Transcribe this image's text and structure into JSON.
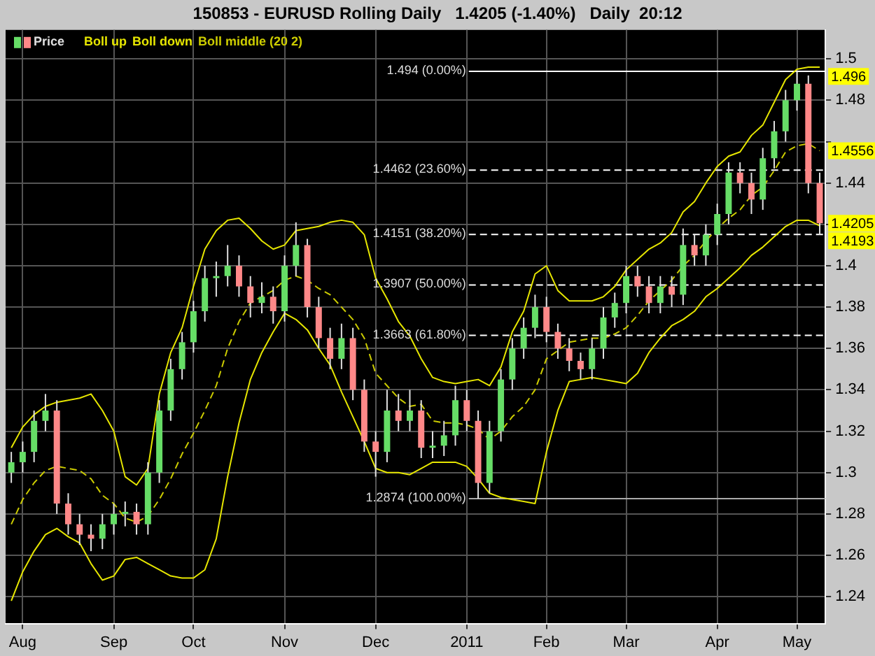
{
  "chart_data": {
    "type": "candlestick",
    "title": "150853 - EURUSD Rolling Daily   1.4205 (-1.40%)   Daily  20:12",
    "categories": [
      null,
      "Aug",
      null,
      null,
      null,
      null,
      null,
      null,
      null,
      "Sep",
      null,
      null,
      null,
      null,
      null,
      null,
      "Oct",
      null,
      null,
      null,
      null,
      null,
      null,
      null,
      "Nov",
      null,
      null,
      null,
      null,
      null,
      null,
      null,
      "Dec",
      null,
      null,
      null,
      null,
      null,
      null,
      null,
      "2011",
      null,
      null,
      null,
      null,
      null,
      null,
      "Feb",
      null,
      null,
      null,
      null,
      null,
      null,
      "Mar",
      null,
      null,
      null,
      null,
      null,
      null,
      null,
      "Apr",
      null,
      null,
      null,
      null,
      null,
      null,
      "May",
      null,
      null
    ],
    "series": [
      {
        "name": "Price",
        "color": "#e0e0e0",
        "value_labels": [
          null,
          null,
          null,
          null,
          null,
          null,
          null,
          null,
          null,
          null,
          null,
          null,
          null,
          null,
          null,
          null,
          null,
          null,
          null,
          null,
          null,
          null,
          null,
          null,
          null,
          null,
          null,
          null,
          null,
          null,
          null,
          null,
          null,
          null,
          null,
          null,
          null,
          null,
          null,
          null,
          null,
          null,
          null,
          null,
          null,
          null,
          null,
          null,
          null,
          null,
          null,
          null,
          null,
          null,
          null,
          null,
          null,
          null,
          null,
          null,
          null,
          null,
          null,
          null,
          null,
          null,
          null,
          null,
          null,
          null,
          null,
          "1.4205"
        ],
        "colors": [
          "#66dd66",
          "#66dd66",
          "#66dd66",
          "#66dd66",
          "#ff8888",
          "#ff8888",
          "#ff8888",
          "#ff8888",
          "#66dd66",
          "#66dd66",
          "#66dd66",
          "#ff8888",
          "#66dd66",
          "#66dd66",
          "#66dd66",
          "#66dd66",
          "#66dd66",
          "#66dd66",
          "#66dd66",
          "#66dd66",
          "#ff8888",
          "#ff8888",
          "#66dd66",
          "#ff8888",
          "#66dd66",
          "#66dd66",
          "#ff8888",
          "#ff8888",
          "#ff8888",
          "#66dd66",
          "#ff8888",
          "#ff8888",
          "#ff8888",
          "#66dd66",
          "#ff8888",
          "#66dd66",
          "#ff8888",
          "#66dd66",
          "#66dd66",
          "#66dd66",
          "#ff8888",
          "#ff8888",
          "#66dd66",
          "#66dd66",
          "#66dd66",
          "#66dd66",
          "#66dd66",
          "#ff8888",
          "#ff8888",
          "#ff8888",
          "#ff8888",
          "#66dd66",
          "#66dd66",
          "#66dd66",
          "#66dd66",
          "#ff8888",
          "#ff8888",
          "#66dd66",
          "#ff8888",
          "#66dd66",
          "#ff8888",
          "#66dd66",
          "#66dd66",
          "#66dd66",
          "#ff8888",
          "#ff8888",
          "#66dd66",
          "#66dd66",
          "#66dd66",
          "#66dd66",
          "#ff8888",
          "#ff8888"
        ],
        "ohlc": [
          [
            1.3,
            1.31,
            1.295,
            1.305
          ],
          [
            1.305,
            1.315,
            1.3,
            1.31
          ],
          [
            1.31,
            1.33,
            1.305,
            1.325
          ],
          [
            1.325,
            1.338,
            1.32,
            1.33
          ],
          [
            1.33,
            1.335,
            1.28,
            1.285
          ],
          [
            1.285,
            1.29,
            1.27,
            1.275
          ],
          [
            1.275,
            1.28,
            1.265,
            1.27
          ],
          [
            1.27,
            1.275,
            1.262,
            1.268
          ],
          [
            1.268,
            1.28,
            1.263,
            1.275
          ],
          [
            1.275,
            1.285,
            1.27,
            1.28
          ],
          [
            1.28,
            1.286,
            1.274,
            1.281
          ],
          [
            1.281,
            1.285,
            1.27,
            1.275
          ],
          [
            1.275,
            1.305,
            1.27,
            1.3
          ],
          [
            1.3,
            1.335,
            1.295,
            1.33
          ],
          [
            1.33,
            1.355,
            1.325,
            1.35
          ],
          [
            1.35,
            1.368,
            1.345,
            1.363
          ],
          [
            1.363,
            1.383,
            1.358,
            1.378
          ],
          [
            1.378,
            1.4,
            1.373,
            1.394
          ],
          [
            1.394,
            1.402,
            1.385,
            1.395
          ],
          [
            1.395,
            1.41,
            1.39,
            1.4
          ],
          [
            1.4,
            1.405,
            1.385,
            1.39
          ],
          [
            1.39,
            1.395,
            1.375,
            1.382
          ],
          [
            1.382,
            1.392,
            1.377,
            1.385
          ],
          [
            1.385,
            1.39,
            1.372,
            1.378
          ],
          [
            1.378,
            1.405,
            1.373,
            1.4
          ],
          [
            1.4,
            1.421,
            1.395,
            1.41
          ],
          [
            1.41,
            1.413,
            1.375,
            1.38
          ],
          [
            1.38,
            1.385,
            1.36,
            1.365
          ],
          [
            1.365,
            1.37,
            1.35,
            1.355
          ],
          [
            1.355,
            1.372,
            1.35,
            1.365
          ],
          [
            1.365,
            1.37,
            1.335,
            1.34
          ],
          [
            1.34,
            1.345,
            1.31,
            1.315
          ],
          [
            1.315,
            1.32,
            1.298,
            1.31
          ],
          [
            1.31,
            1.34,
            1.305,
            1.33
          ],
          [
            1.33,
            1.338,
            1.32,
            1.325
          ],
          [
            1.325,
            1.34,
            1.32,
            1.33
          ],
          [
            1.33,
            1.335,
            1.307,
            1.312
          ],
          [
            1.312,
            1.32,
            1.307,
            1.313
          ],
          [
            1.313,
            1.325,
            1.308,
            1.318
          ],
          [
            1.318,
            1.342,
            1.313,
            1.335
          ],
          [
            1.335,
            1.34,
            1.32,
            1.325
          ],
          [
            1.325,
            1.33,
            1.2874,
            1.295
          ],
          [
            1.295,
            1.325,
            1.29,
            1.32
          ],
          [
            1.32,
            1.35,
            1.315,
            1.345
          ],
          [
            1.345,
            1.365,
            1.34,
            1.36
          ],
          [
            1.36,
            1.375,
            1.355,
            1.37
          ],
          [
            1.37,
            1.386,
            1.365,
            1.38
          ],
          [
            1.38,
            1.385,
            1.363,
            1.368
          ],
          [
            1.368,
            1.372,
            1.355,
            1.36
          ],
          [
            1.36,
            1.365,
            1.349,
            1.354
          ],
          [
            1.354,
            1.358,
            1.345,
            1.35
          ],
          [
            1.35,
            1.365,
            1.345,
            1.36
          ],
          [
            1.36,
            1.38,
            1.355,
            1.375
          ],
          [
            1.375,
            1.387,
            1.37,
            1.382
          ],
          [
            1.382,
            1.4,
            1.377,
            1.395
          ],
          [
            1.395,
            1.4,
            1.385,
            1.39
          ],
          [
            1.39,
            1.395,
            1.377,
            1.382
          ],
          [
            1.382,
            1.395,
            1.377,
            1.39
          ],
          [
            1.39,
            1.395,
            1.38,
            1.386
          ],
          [
            1.386,
            1.418,
            1.381,
            1.41
          ],
          [
            1.41,
            1.415,
            1.4,
            1.405
          ],
          [
            1.405,
            1.42,
            1.4,
            1.415
          ],
          [
            1.415,
            1.43,
            1.41,
            1.425
          ],
          [
            1.425,
            1.45,
            1.42,
            1.445
          ],
          [
            1.445,
            1.45,
            1.435,
            1.44
          ],
          [
            1.44,
            1.445,
            1.425,
            1.432
          ],
          [
            1.432,
            1.457,
            1.427,
            1.452
          ],
          [
            1.452,
            1.47,
            1.447,
            1.465
          ],
          [
            1.465,
            1.485,
            1.46,
            1.48
          ],
          [
            1.48,
            1.494,
            1.475,
            1.488
          ],
          [
            1.488,
            1.492,
            1.435,
            1.44
          ],
          [
            1.44,
            1.445,
            1.415,
            1.4205
          ]
        ]
      },
      {
        "name": "Boll up",
        "type": "line",
        "color": "#e6e600",
        "line_style": "solid",
        "value_labels": [
          null,
          null,
          null,
          null,
          null,
          null,
          null,
          null,
          null,
          null,
          null,
          null,
          null,
          null,
          null,
          null,
          null,
          null,
          null,
          null,
          null,
          null,
          null,
          null,
          null,
          null,
          null,
          null,
          null,
          null,
          null,
          null,
          null,
          null,
          null,
          null,
          null,
          null,
          null,
          null,
          null,
          null,
          null,
          null,
          null,
          null,
          null,
          null,
          null,
          null,
          null,
          null,
          null,
          null,
          null,
          null,
          null,
          null,
          null,
          null,
          null,
          null,
          null,
          null,
          null,
          null,
          null,
          null,
          null,
          null,
          null,
          "1.496"
        ],
        "values": [
          1.312,
          1.322,
          1.328,
          1.332,
          1.334,
          1.335,
          1.336,
          1.338,
          1.33,
          1.32,
          1.298,
          1.294,
          1.302,
          1.338,
          1.358,
          1.37,
          1.39,
          1.408,
          1.417,
          1.422,
          1.423,
          1.418,
          1.412,
          1.408,
          1.41,
          1.417,
          1.418,
          1.419,
          1.421,
          1.422,
          1.421,
          1.415,
          1.394,
          1.384,
          1.373,
          1.366,
          1.355,
          1.346,
          1.344,
          1.343,
          1.344,
          1.345,
          1.342,
          1.351,
          1.368,
          1.378,
          1.396,
          1.4,
          1.388,
          1.383,
          1.383,
          1.383,
          1.385,
          1.39,
          1.398,
          1.403,
          1.408,
          1.411,
          1.416,
          1.426,
          1.431,
          1.44,
          1.448,
          1.453,
          1.455,
          1.463,
          1.468,
          1.479,
          1.49,
          1.495,
          1.496,
          1.496
        ]
      },
      {
        "name": "Boll down",
        "type": "line",
        "color": "#e6e600",
        "line_style": "solid",
        "value_labels": [
          null,
          null,
          null,
          null,
          null,
          null,
          null,
          null,
          null,
          null,
          null,
          null,
          null,
          null,
          null,
          null,
          null,
          null,
          null,
          null,
          null,
          null,
          null,
          null,
          null,
          null,
          null,
          null,
          null,
          null,
          null,
          null,
          null,
          null,
          null,
          null,
          null,
          null,
          null,
          null,
          null,
          null,
          null,
          null,
          null,
          null,
          null,
          null,
          null,
          null,
          null,
          null,
          null,
          null,
          null,
          null,
          null,
          null,
          null,
          null,
          null,
          null,
          null,
          null,
          null,
          null,
          null,
          null,
          null,
          null,
          null,
          "1.4193"
        ],
        "values": [
          1.238,
          1.252,
          1.262,
          1.27,
          1.273,
          1.269,
          1.266,
          1.256,
          1.248,
          1.25,
          1.258,
          1.259,
          1.256,
          1.253,
          1.25,
          1.249,
          1.249,
          1.253,
          1.268,
          1.298,
          1.324,
          1.345,
          1.358,
          1.368,
          1.377,
          1.374,
          1.369,
          1.36,
          1.352,
          1.339,
          1.327,
          1.315,
          1.302,
          1.3,
          1.3,
          1.299,
          1.302,
          1.305,
          1.305,
          1.305,
          1.303,
          1.297,
          1.29,
          1.288,
          1.287,
          1.286,
          1.285,
          1.31,
          1.33,
          1.344,
          1.345,
          1.346,
          1.345,
          1.344,
          1.343,
          1.348,
          1.358,
          1.365,
          1.371,
          1.374,
          1.378,
          1.385,
          1.389,
          1.394,
          1.399,
          1.405,
          1.409,
          1.414,
          1.419,
          1.422,
          1.422,
          1.4193
        ]
      },
      {
        "name": "Boll middle (20 2)",
        "type": "line",
        "color": "#cccc00",
        "line_style": "dashed",
        "value_labels": [
          null,
          null,
          null,
          null,
          null,
          null,
          null,
          null,
          null,
          null,
          null,
          null,
          null,
          null,
          null,
          null,
          null,
          null,
          null,
          null,
          null,
          null,
          null,
          null,
          null,
          null,
          null,
          null,
          null,
          null,
          null,
          null,
          null,
          null,
          null,
          null,
          null,
          null,
          null,
          null,
          null,
          null,
          null,
          null,
          null,
          null,
          null,
          null,
          null,
          null,
          null,
          null,
          null,
          null,
          null,
          null,
          null,
          null,
          null,
          null,
          null,
          null,
          null,
          null,
          null,
          null,
          null,
          null,
          null,
          null,
          null,
          "1.4556"
        ],
        "values": [
          1.275,
          1.287,
          1.295,
          1.301,
          1.303,
          1.302,
          1.301,
          1.297,
          1.289,
          1.285,
          1.278,
          1.276,
          1.279,
          1.287,
          1.297,
          1.309,
          1.319,
          1.33,
          1.342,
          1.36,
          1.373,
          1.382,
          1.385,
          1.388,
          1.393,
          1.395,
          1.393,
          1.389,
          1.386,
          1.38,
          1.374,
          1.365,
          1.348,
          1.342,
          1.336,
          1.332,
          1.333,
          1.325,
          1.324,
          1.324,
          1.323,
          1.321,
          1.316,
          1.32,
          1.327,
          1.332,
          1.34,
          1.355,
          1.359,
          1.363,
          1.364,
          1.365,
          1.365,
          1.367,
          1.37,
          1.376,
          1.383,
          1.388,
          1.393,
          1.4,
          1.405,
          1.412,
          1.418,
          1.423,
          1.427,
          1.434,
          1.438,
          1.446,
          1.455,
          1.458,
          1.459,
          1.4556
        ]
      }
    ],
    "ylim": [
      1.227,
      1.514
    ],
    "yticks": [
      1.24,
      1.26,
      1.28,
      1.3,
      1.32,
      1.34,
      1.36,
      1.38,
      1.4,
      {
        "value": 1.42,
        "label": null
      },
      1.44,
      {
        "value": 1.46,
        "label": null
      },
      1.48,
      1.5
    ],
    "ref_lines": [
      {
        "axis": "y",
        "value": 1.494,
        "label": "1.494 (0.00%)",
        "color": "#ffffff",
        "line_style": "solid"
      },
      {
        "axis": "y",
        "value": 1.4462,
        "label": "1.4462 (23.60%)",
        "color": "#ffffff",
        "line_style": "dashed"
      },
      {
        "axis": "y",
        "value": 1.4151,
        "label": "1.4151 (38.20%)",
        "color": "#ffffff",
        "line_style": "dashed"
      },
      {
        "axis": "y",
        "value": 1.3907,
        "label": "1.3907 (50.00%)",
        "color": "#ffffff",
        "line_style": "dashed"
      },
      {
        "axis": "y",
        "value": 1.3663,
        "label": "1.3663 (61.80%)",
        "color": "#ffffff",
        "line_style": "dashed"
      },
      {
        "axis": "y",
        "value": 1.2874,
        "label": "1.2874 (100.00%)",
        "color": "#aaaaaa",
        "line_style": "solid"
      }
    ],
    "grid": true,
    "legend": "top left"
  }
}
